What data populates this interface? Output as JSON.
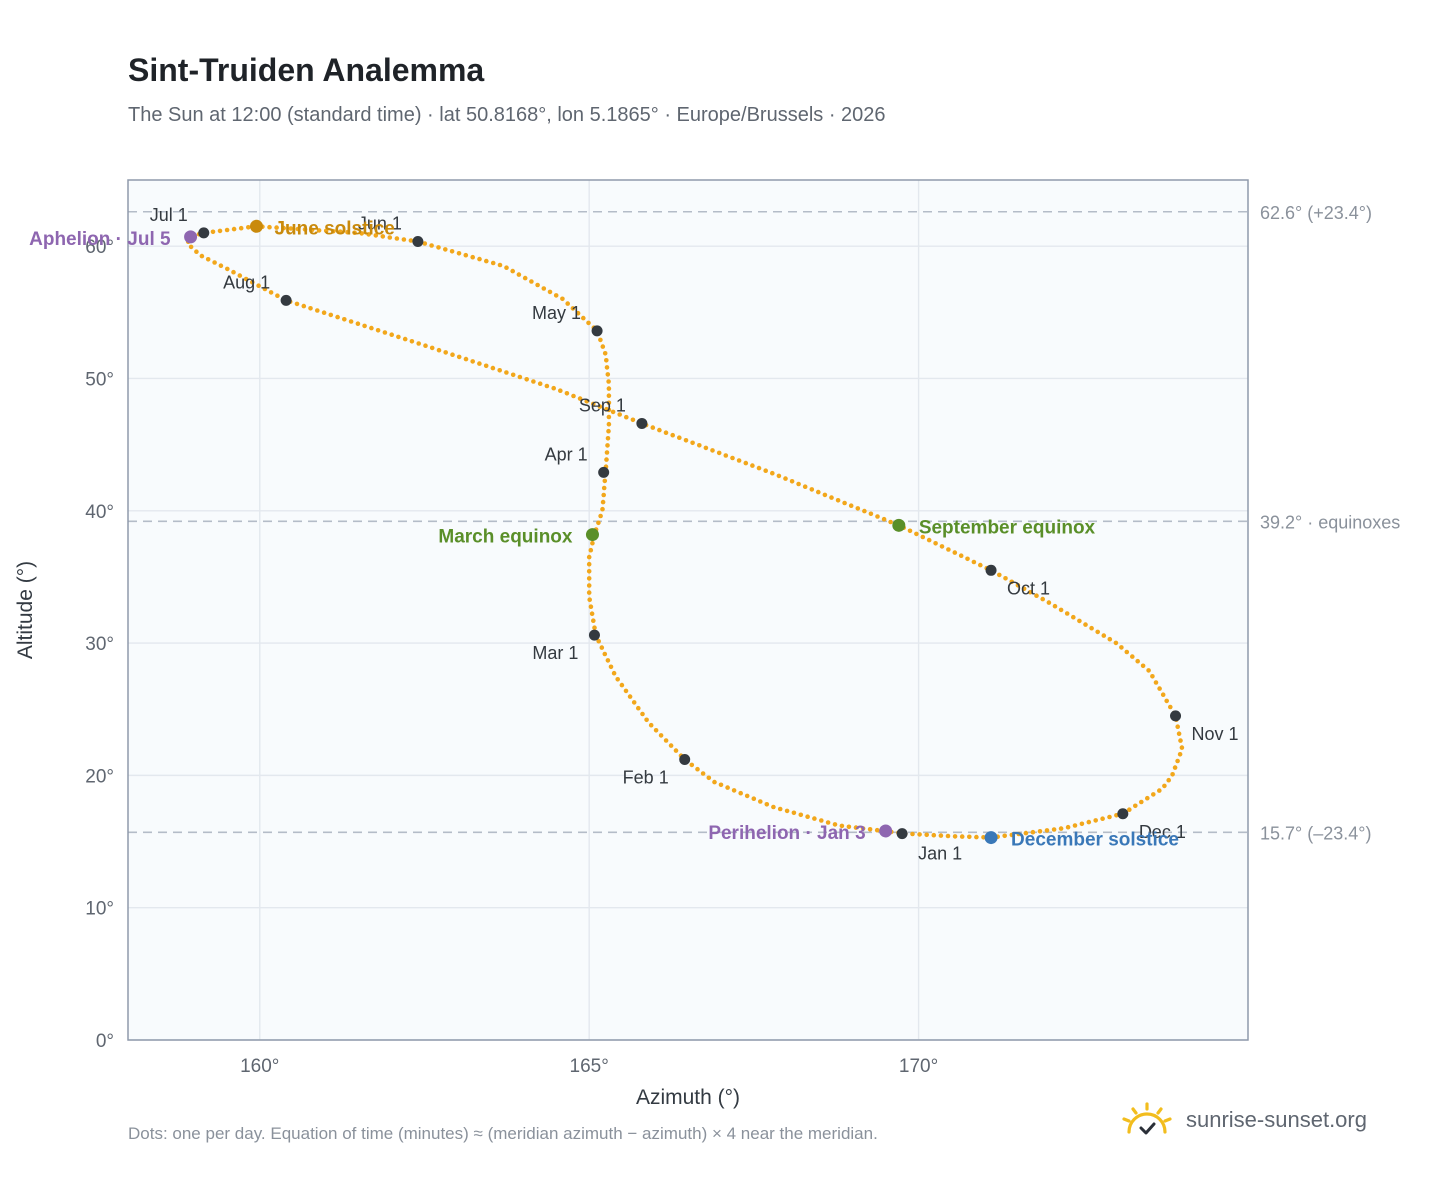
{
  "header": {
    "title": "Sint-Truiden Analemma",
    "subtitle": "The Sun at 12:00 (standard time) · lat 50.8168°, lon 5.1865° · Europe/Brussels · 2026"
  },
  "footer": {
    "note": "Dots: one per day. Equation of time (minutes) ≈ (meridian azimuth − azimuth) × 4 near the meridian.",
    "brand": "sunrise-sunset.org"
  },
  "colors": {
    "curve": "#f2a71b",
    "month_dot": "#343a40",
    "equinox": "#5a8f29",
    "june_solstice": "#c98a0c",
    "december_solstice": "#3a78b8",
    "apsis": "#8e66b0",
    "plot_bg": "#f8fbfd",
    "grid": "#e3e8ee",
    "reference_line": "#b4bcc8",
    "axis_frame": "#8f9aab",
    "brand_sun": "#f2bd1e"
  },
  "chart_data": {
    "type": "scatter",
    "xlabel": "Azimuth (°)",
    "ylabel": "Altitude (°)",
    "xlim": [
      158,
      175
    ],
    "ylim": [
      0,
      65
    ],
    "x_ticks": [
      {
        "value": 160,
        "label": "160°"
      },
      {
        "value": 165,
        "label": "165°"
      },
      {
        "value": 170,
        "label": "170°"
      }
    ],
    "y_ticks": [
      {
        "value": 0,
        "label": "0°"
      },
      {
        "value": 10,
        "label": "10°"
      },
      {
        "value": 20,
        "label": "20°"
      },
      {
        "value": 30,
        "label": "30°"
      },
      {
        "value": 40,
        "label": "40°"
      },
      {
        "value": 50,
        "label": "50°"
      },
      {
        "value": 60,
        "label": "60°"
      }
    ],
    "grid": true,
    "reference_lines": [
      {
        "altitude": 62.6,
        "label": "62.6° (+23.4°)"
      },
      {
        "altitude": 39.2,
        "label": "39.2° · equinoxes"
      },
      {
        "altitude": 15.7,
        "label": "15.7° (–23.4°)"
      }
    ],
    "analemma_path": [
      [
        169.8,
        15.6
      ],
      [
        168.8,
        16.2
      ],
      [
        167.8,
        17.6
      ],
      [
        166.9,
        19.5
      ],
      [
        166.45,
        21.2
      ],
      [
        165.9,
        24.0
      ],
      [
        165.4,
        27.5
      ],
      [
        165.1,
        30.6
      ],
      [
        165.0,
        33.5
      ],
      [
        165.0,
        36.5
      ],
      [
        165.08,
        38.2
      ],
      [
        165.2,
        40.0
      ],
      [
        165.25,
        43.0
      ],
      [
        165.3,
        46.5
      ],
      [
        165.3,
        49.5
      ],
      [
        165.25,
        51.8
      ],
      [
        165.12,
        53.6
      ],
      [
        164.6,
        56.0
      ],
      [
        163.7,
        58.5
      ],
      [
        162.4,
        60.35
      ],
      [
        161.5,
        61.0
      ],
      [
        159.95,
        61.5
      ],
      [
        159.15,
        61.0
      ],
      [
        158.95,
        60.7
      ],
      [
        158.9,
        60.2
      ],
      [
        159.1,
        59.3
      ],
      [
        159.5,
        58.3
      ],
      [
        160.4,
        55.9
      ],
      [
        162.5,
        52.5
      ],
      [
        164.5,
        49.2
      ],
      [
        165.8,
        46.6
      ],
      [
        167.8,
        42.8
      ],
      [
        169.7,
        38.9
      ],
      [
        171.1,
        35.5
      ],
      [
        172.0,
        33.0
      ],
      [
        173.0,
        30.0
      ],
      [
        173.5,
        27.9
      ],
      [
        173.9,
        24.5
      ],
      [
        174.0,
        22.0
      ],
      [
        173.85,
        20.0
      ],
      [
        173.7,
        19.0
      ],
      [
        173.1,
        17.1
      ],
      [
        172.2,
        16.0
      ],
      [
        171.1,
        15.3
      ],
      [
        170.5,
        15.4
      ],
      [
        169.8,
        15.6
      ]
    ],
    "month_markers": [
      {
        "label": "Jan 1",
        "azimuth": 169.75,
        "altitude": 15.6
      },
      {
        "label": "Feb 1",
        "azimuth": 166.45,
        "altitude": 21.2
      },
      {
        "label": "Mar 1",
        "azimuth": 165.08,
        "altitude": 30.6
      },
      {
        "label": "Apr 1",
        "azimuth": 165.22,
        "altitude": 42.9
      },
      {
        "label": "May 1",
        "azimuth": 165.12,
        "altitude": 53.6
      },
      {
        "label": "Jun 1",
        "azimuth": 162.4,
        "altitude": 60.35
      },
      {
        "label": "Jul 1",
        "azimuth": 159.15,
        "altitude": 61.0
      },
      {
        "label": "Aug 1",
        "azimuth": 160.4,
        "altitude": 55.9
      },
      {
        "label": "Sep 1",
        "azimuth": 165.8,
        "altitude": 46.6
      },
      {
        "label": "Oct 1",
        "azimuth": 171.1,
        "altitude": 35.5
      },
      {
        "label": "Nov 1",
        "azimuth": 173.9,
        "altitude": 24.5
      },
      {
        "label": "Dec 1",
        "azimuth": 173.1,
        "altitude": 17.1
      }
    ],
    "special_points": [
      {
        "key": "equinox",
        "label": "March equinox",
        "azimuth": 165.05,
        "altitude": 38.2
      },
      {
        "key": "equinox",
        "label": "September equinox",
        "azimuth": 169.7,
        "altitude": 38.9
      },
      {
        "key": "june_solstice",
        "label": "June solstice",
        "azimuth": 159.95,
        "altitude": 61.5
      },
      {
        "key": "december_solstice",
        "label": "December solstice",
        "azimuth": 171.1,
        "altitude": 15.3
      },
      {
        "key": "apsis",
        "label": "Aphelion · Jul 5",
        "azimuth": 158.95,
        "altitude": 60.7
      },
      {
        "key": "apsis",
        "label": "Perihelion · Jan 3",
        "azimuth": 169.5,
        "altitude": 15.8
      }
    ]
  }
}
